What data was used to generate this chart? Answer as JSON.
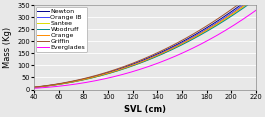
{
  "title": "",
  "xlabel": "SVL (cm)",
  "ylabel": "Mass (Kg)",
  "xlim": [
    40,
    220
  ],
  "ylim": [
    0,
    350
  ],
  "xticks": [
    40,
    60,
    80,
    100,
    120,
    140,
    160,
    180,
    200,
    220
  ],
  "yticks": [
    0,
    50,
    100,
    150,
    200,
    250,
    300,
    350
  ],
  "series": [
    {
      "label": "Newton",
      "color": "#00008B",
      "a": 0.0028,
      "b": 2.2
    },
    {
      "label": "Orange IB",
      "color": "#4444FF",
      "a": 0.0026,
      "b": 2.21
    },
    {
      "label": "Santee",
      "color": "#DDDD00",
      "a": 0.0024,
      "b": 2.22
    },
    {
      "label": "Woodruff",
      "color": "#008B8B",
      "a": 0.0025,
      "b": 2.21
    },
    {
      "label": "Orange",
      "color": "#FF8C00",
      "a": 0.0027,
      "b": 2.2
    },
    {
      "label": "Griffin",
      "color": "#A0522D",
      "a": 0.0032,
      "b": 2.18
    },
    {
      "label": "Everglades",
      "color": "#FF00FF",
      "a": 0.0006,
      "b": 2.45
    }
  ],
  "background_color": "#E8E8E8",
  "legend_fontsize": 4.5,
  "axis_fontsize": 6.0,
  "tick_fontsize": 4.8,
  "grid_color": "#FFFFFF",
  "linewidth": 0.7
}
